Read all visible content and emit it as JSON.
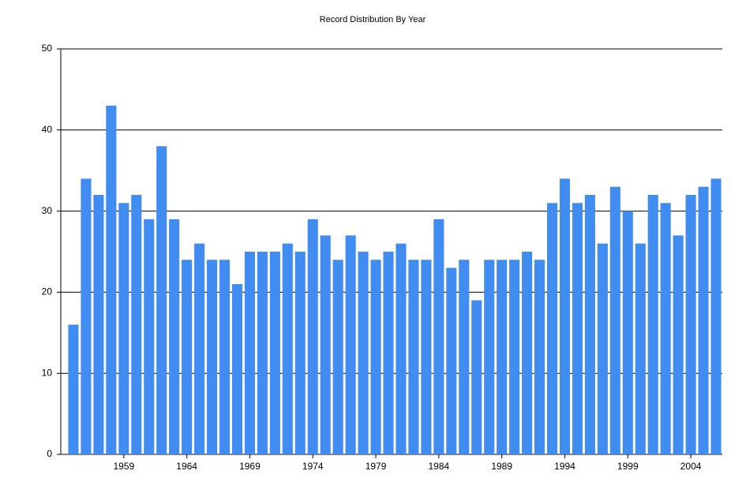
{
  "chart_data": {
    "type": "bar",
    "title": "Record Distribution By Year",
    "categories": [
      null,
      null,
      null,
      null,
      "1959",
      null,
      null,
      null,
      null,
      "1964",
      null,
      null,
      null,
      null,
      "1969",
      null,
      null,
      null,
      null,
      "1974",
      null,
      null,
      null,
      null,
      "1979",
      null,
      null,
      null,
      null,
      "1984",
      null,
      null,
      null,
      null,
      "1989",
      null,
      null,
      null,
      null,
      "1994",
      null,
      null,
      null,
      null,
      "1999",
      null,
      null,
      null,
      null,
      "2004",
      null,
      null
    ],
    "values": [
      16,
      34,
      32,
      43,
      31,
      32,
      29,
      38,
      29,
      24,
      26,
      24,
      24,
      21,
      25,
      25,
      25,
      26,
      25,
      29,
      27,
      24,
      27,
      25,
      24,
      25,
      26,
      24,
      24,
      29,
      23,
      24,
      19,
      24,
      24,
      24,
      25,
      24,
      31,
      34,
      31,
      32,
      26,
      33,
      30,
      26,
      32,
      31,
      27,
      32,
      33,
      34
    ],
    "color": "#418cf0",
    "ylim": [
      0,
      50
    ],
    "yticks": [
      0,
      10,
      20,
      30,
      40,
      50
    ],
    "grid": true
  }
}
